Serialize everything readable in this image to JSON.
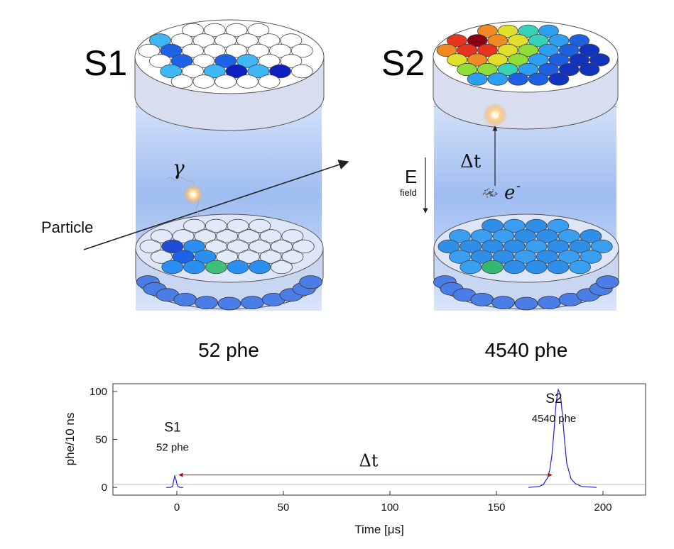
{
  "detectors": [
    {
      "label": "S1",
      "count_label": "52 phe"
    },
    {
      "label": "S2",
      "count_label": "4540 phe"
    }
  ],
  "annotations": {
    "gamma": "γ",
    "particle": "Particle",
    "delta_t": "Δt",
    "electron": "e",
    "electron_sup": "-",
    "efield_main": "E",
    "efield_sub": "field"
  },
  "colors": {
    "liquid": "#a9c4f2",
    "pmt_edge": "#5a5a5a",
    "trace": "#1f1fdd",
    "delta_arrow": "#a01010"
  },
  "chart_data": {
    "type": "line",
    "xlabel": "Time [μs]",
    "ylabel": "phe/10 ns",
    "xlim": [
      -30,
      220
    ],
    "ylim": [
      -8,
      108
    ],
    "xticks": [
      0,
      50,
      100,
      150,
      200
    ],
    "yticks": [
      0,
      50,
      100
    ],
    "grid": false,
    "series": [
      {
        "x": [
          -5,
          -3,
          -2,
          -1.5,
          -1,
          -0.5,
          0,
          0.5,
          1.5,
          3
        ],
        "y": [
          0,
          0,
          1,
          7,
          12,
          9,
          4,
          1,
          0,
          0
        ]
      },
      {
        "x": [
          165,
          170,
          172,
          174,
          175,
          176,
          177,
          178,
          179,
          180,
          181,
          182,
          183,
          185,
          187,
          190,
          197
        ],
        "y": [
          0,
          1,
          3,
          10,
          18,
          33,
          58,
          88,
          102,
          97,
          75,
          48,
          25,
          9,
          4,
          1,
          0
        ]
      }
    ],
    "annotations": [
      {
        "text": "S1",
        "x": -2,
        "y": 58
      },
      {
        "text": "52 phe",
        "x": -2,
        "y": 38
      },
      {
        "text": "S2",
        "x": 177,
        "y": 88
      },
      {
        "text": "4540 phe",
        "x": 177,
        "y": 68
      },
      {
        "text": "Δt",
        "x": 90,
        "y": 22
      }
    ],
    "interval": {
      "from": 0,
      "to": 177,
      "y": 13
    }
  }
}
